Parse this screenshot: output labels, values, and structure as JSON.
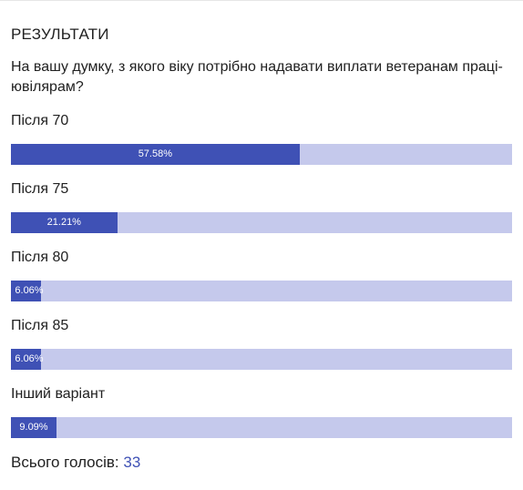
{
  "poll": {
    "title": "РЕЗУЛЬТАТИ",
    "question": "На вашу думку, з якого віку потрібно надавати виплати ветеранам праці-ювілярам?",
    "options": [
      {
        "label": "Після 70",
        "percent_label": "57.58%",
        "percent": 57.58
      },
      {
        "label": "Після 75",
        "percent_label": "21.21%",
        "percent": 21.21
      },
      {
        "label": "Після 80",
        "percent_label": "6.06%",
        "percent": 6.06
      },
      {
        "label": "Після 85",
        "percent_label": "6.06%",
        "percent": 6.06
      },
      {
        "label": "Інший варіант",
        "percent_label": "9.09%",
        "percent": 9.09
      }
    ],
    "total_label": "Всього голосів:",
    "total_count": "33"
  },
  "colors": {
    "bar_fill": "#3f51b5",
    "bar_track": "#c5c9ec",
    "accent": "#3f51b5"
  }
}
